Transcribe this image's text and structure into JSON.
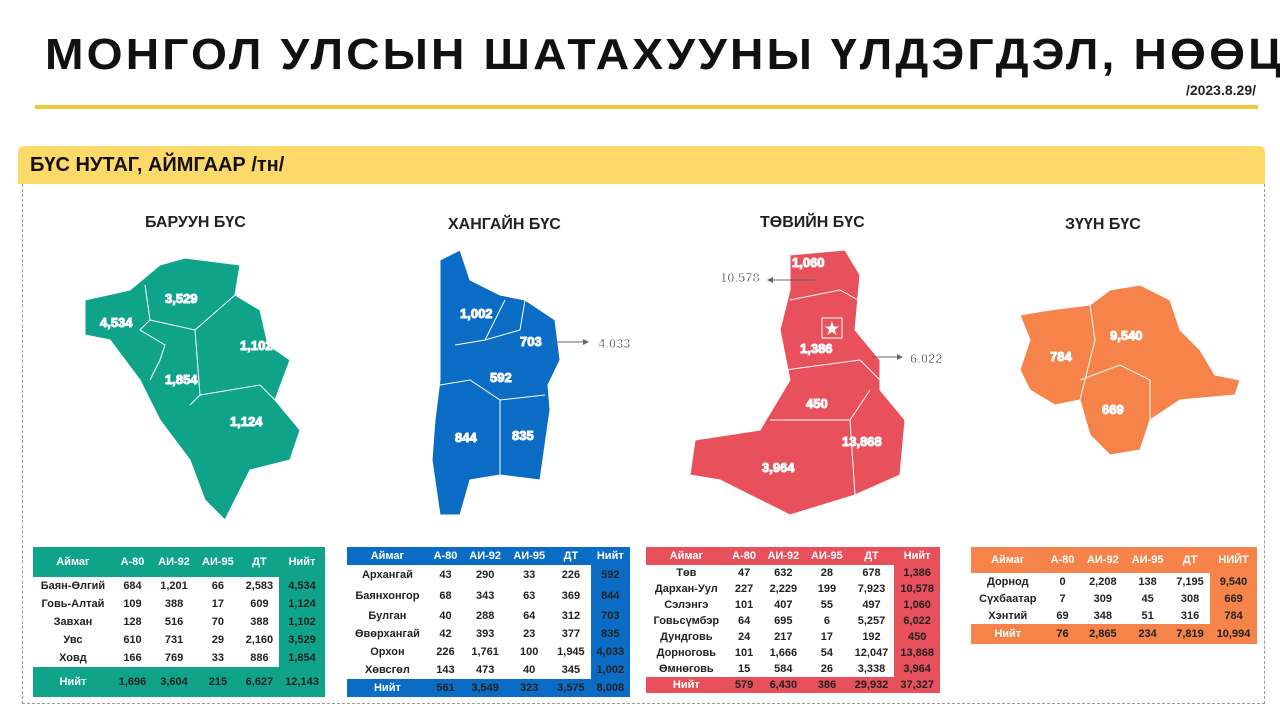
{
  "title": "МОНГОЛ УЛСЫН ШАТАХУУНЫ ҮЛДЭГДЭЛ, НӨӨЦ",
  "date": "/2023.8.29/",
  "section_title": "БҮС НУТАГ, АЙМГААР /тн/",
  "colors": {
    "west": "#0fa48a",
    "khangai": "#0a6cc4",
    "central": "#e8505b",
    "east": "#f5834a",
    "header": "#fdd96a",
    "rule": "#f2c63b"
  },
  "regions": [
    {
      "name": "БАРУУН БҮС",
      "map_labels": [
        "3,529",
        "4,534",
        "1,102",
        "1,854",
        "1,124"
      ],
      "headers": [
        "Аймаг",
        "А-80",
        "АИ-92",
        "АИ-95",
        "ДТ",
        "Нийт"
      ],
      "rows": [
        [
          "Баян-Өлгий",
          "684",
          "1,201",
          "66",
          "2,583",
          "4,534"
        ],
        [
          "Говь-Алтай",
          "109",
          "388",
          "17",
          "609",
          "1,124"
        ],
        [
          "Завхан",
          "128",
          "516",
          "70",
          "388",
          "1,102"
        ],
        [
          "Увс",
          "610",
          "731",
          "29",
          "2,160",
          "3,529"
        ],
        [
          "Ховд",
          "166",
          "769",
          "33",
          "886",
          "1,854"
        ]
      ],
      "total": [
        "Нийт",
        "1,696",
        "3,604",
        "215",
        "6,627",
        "12,143"
      ]
    },
    {
      "name": "ХАНГАЙН БҮС",
      "map_labels": [
        "1,002",
        "703",
        "4,033",
        "592",
        "844",
        "835"
      ],
      "headers": [
        "Аймаг",
        "А-80",
        "АИ-92",
        "АИ-95",
        "ДТ",
        "Нийт"
      ],
      "rows": [
        [
          "Архангай",
          "43",
          "290",
          "33",
          "226",
          "592"
        ],
        [
          "Баянхонгор",
          "68",
          "343",
          "63",
          "369",
          "844"
        ],
        [
          "Булган",
          "40",
          "288",
          "64",
          "312",
          "703"
        ],
        [
          "Өвөрхангай",
          "42",
          "393",
          "23",
          "377",
          "835"
        ],
        [
          "Орхон",
          "226",
          "1,761",
          "100",
          "1,945",
          "4,033"
        ],
        [
          "Хөвсгөл",
          "143",
          "473",
          "40",
          "345",
          "1,002"
        ]
      ],
      "total": [
        "Нийт",
        "561",
        "3,549",
        "323",
        "3,575",
        "8,008"
      ]
    },
    {
      "name": "ТӨВИЙН БҮС",
      "map_labels": [
        "1,060",
        "10,578",
        "1,386",
        "6,022",
        "450",
        "13,868",
        "3,964"
      ],
      "headers": [
        "Аймаг",
        "А-80",
        "АИ-92",
        "АИ-95",
        "ДТ",
        "Нийт"
      ],
      "rows": [
        [
          "Төв",
          "47",
          "632",
          "28",
          "678",
          "1,386"
        ],
        [
          "Дархан-Уул",
          "227",
          "2,229",
          "199",
          "7,923",
          "10,578"
        ],
        [
          "Сэлэнгэ",
          "101",
          "407",
          "55",
          "497",
          "1,060"
        ],
        [
          "Говьсүмбэр",
          "64",
          "695",
          "6",
          "5,257",
          "6,022"
        ],
        [
          "Дундговь",
          "24",
          "217",
          "17",
          "192",
          "450"
        ],
        [
          "Дорноговь",
          "101",
          "1,666",
          "54",
          "12,047",
          "13,868"
        ],
        [
          "Өмнөговь",
          "15",
          "584",
          "26",
          "3,338",
          "3,964"
        ]
      ],
      "total": [
        "Нийт",
        "579",
        "6,430",
        "386",
        "29,932",
        "37,327"
      ]
    },
    {
      "name": "ЗҮҮН БҮС",
      "map_labels": [
        "784",
        "9,540",
        "669"
      ],
      "headers": [
        "Аймаг",
        "А-80",
        "АИ-92",
        "АИ-95",
        "ДТ",
        "НИЙТ"
      ],
      "rows": [
        [
          "Дорнод",
          "0",
          "2,208",
          "138",
          "7,195",
          "9,540"
        ],
        [
          "Сүхбаатар",
          "7",
          "309",
          "45",
          "308",
          "669"
        ],
        [
          "Хэнтий",
          "69",
          "348",
          "51",
          "316",
          "784"
        ]
      ],
      "total": [
        "Нийт",
        "76",
        "2,865",
        "234",
        "7,819",
        "10,994"
      ]
    }
  ]
}
